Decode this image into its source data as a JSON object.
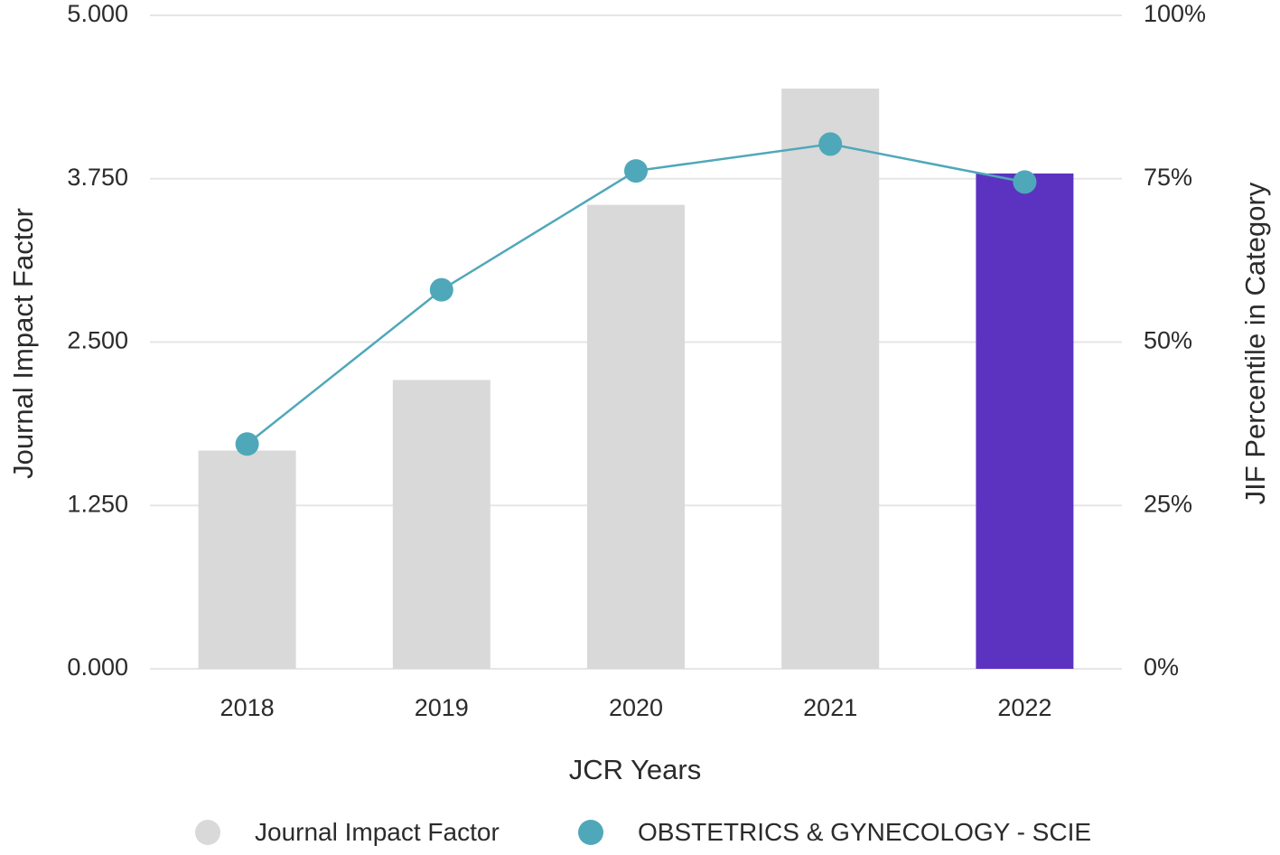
{
  "chart_data": {
    "type": "bar",
    "xlabel": "JCR Years",
    "ylabel": "Journal Impact Factor",
    "ylabel_right": "JIF Percentile in Category",
    "categories": [
      "2018",
      "2019",
      "2020",
      "2021",
      "2022"
    ],
    "ylim": [
      0,
      5
    ],
    "ylim_right": [
      0,
      100
    ],
    "yticks": [
      "0.000",
      "1.250",
      "2.500",
      "3.750",
      "5.000"
    ],
    "yticks_right": [
      "0%",
      "25%",
      "50%",
      "75%",
      "100%"
    ],
    "grid": true,
    "legend_position": "bottom",
    "series": [
      {
        "name": "Journal Impact Factor",
        "type": "bar",
        "axis": "left",
        "values": [
          1.67,
          2.21,
          3.55,
          4.44,
          3.79
        ],
        "colors": [
          "#d9d9d9",
          "#d9d9d9",
          "#d9d9d9",
          "#d9d9d9",
          "#5c33c1"
        ]
      },
      {
        "name": "OBSTETRICS & GYNECOLOGY - SCIE",
        "type": "line",
        "axis": "right",
        "values": [
          34.4,
          58.0,
          76.2,
          80.3,
          74.5
        ],
        "color": "#4fa8b9"
      }
    ],
    "legend_colors": [
      "#d9d9d9",
      "#4fa8b9"
    ]
  }
}
